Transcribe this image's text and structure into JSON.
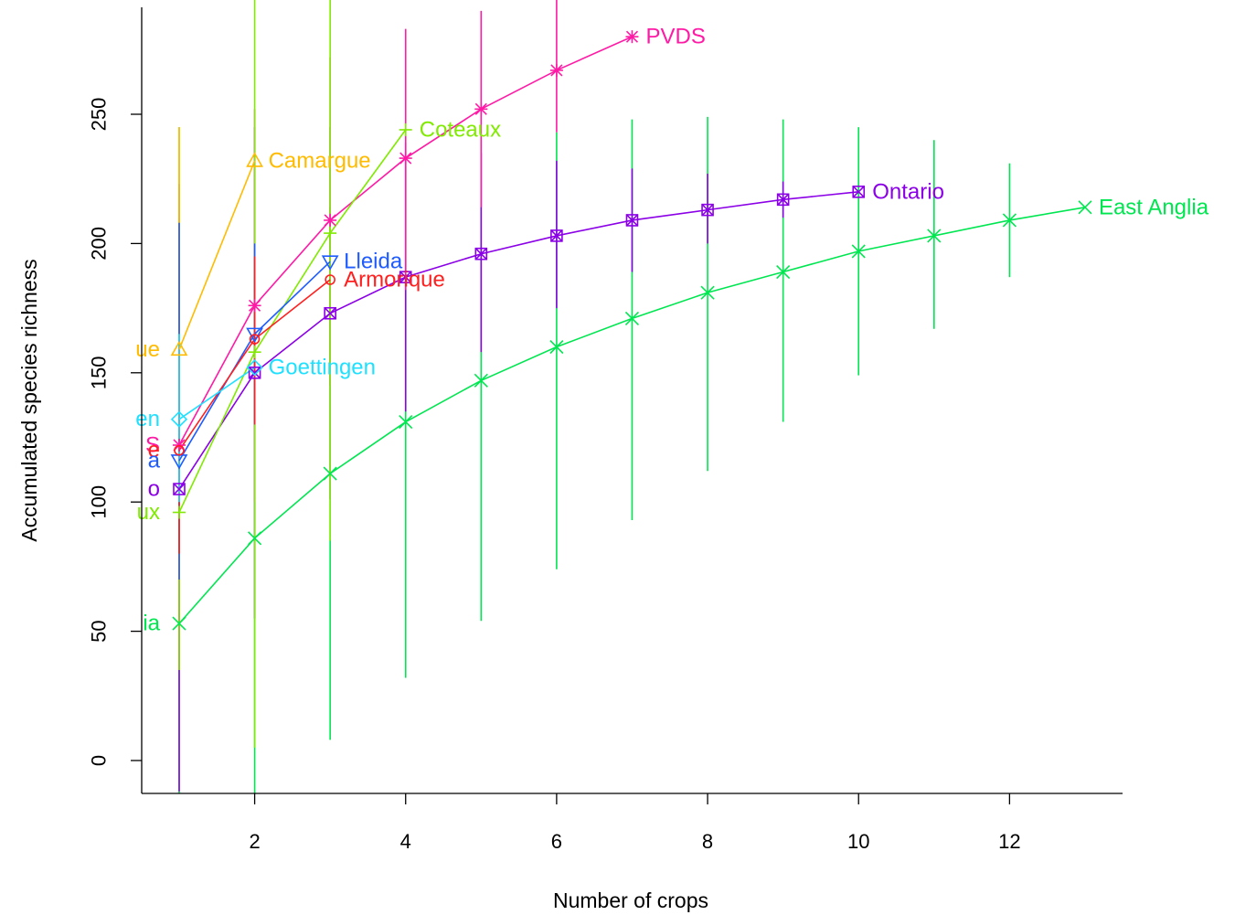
{
  "chart_data": {
    "type": "line",
    "title": "",
    "xlabel": "Number of crops",
    "ylabel": "Accumulated species richness",
    "xlim": [
      0.5,
      13.5
    ],
    "ylim": [
      -10,
      295
    ],
    "x_ticks": [
      2,
      4,
      6,
      8,
      10,
      12
    ],
    "y_ticks": [
      0,
      50,
      100,
      150,
      200,
      250
    ],
    "grid": false,
    "legend": "none (series labelled at line ends)",
    "series": [
      {
        "name": "East Anglia",
        "color": "#00e650",
        "marker": "x",
        "x": [
          1,
          2,
          3,
          4,
          5,
          6,
          7,
          8,
          9,
          10,
          11,
          12,
          13
        ],
        "y": [
          53,
          86,
          111,
          131,
          147,
          160,
          171,
          181,
          189,
          197,
          203,
          209,
          214
        ],
        "err_low": [
          -35,
          -15,
          8,
          32,
          54,
          74,
          93,
          112,
          131,
          149,
          167,
          187,
          214
        ],
        "err_high": [
          140,
          187,
          214,
          230,
          240,
          243,
          248,
          249,
          248,
          245,
          240,
          231,
          214
        ]
      },
      {
        "name": "Ontario",
        "color": "#8b00e6",
        "marker": "boxed-x",
        "x": [
          1,
          2,
          3,
          4,
          5,
          6,
          7,
          8,
          9,
          10
        ],
        "y": [
          105,
          150,
          173,
          187,
          196,
          203,
          209,
          213,
          217,
          220
        ],
        "err_low": [
          -12,
          55,
          101,
          135,
          158,
          175,
          189,
          200,
          210,
          220
        ],
        "err_high": [
          223,
          245,
          245,
          239,
          235,
          232,
          229,
          227,
          224,
          220
        ]
      },
      {
        "name": "PVDS",
        "color": "#ff1aa6",
        "marker": "asterisk",
        "x": [
          1,
          2,
          3,
          4,
          5,
          6,
          7
        ],
        "y": [
          122,
          176,
          209,
          233,
          252,
          267,
          280
        ],
        "err_low": [
          35,
          100,
          145,
          182,
          214,
          243,
          280
        ],
        "err_high": [
          210,
          252,
          272,
          283,
          290,
          295,
          280
        ]
      },
      {
        "name": "Coteaux",
        "color": "#80ea00",
        "marker": "plus",
        "x": [
          1,
          2,
          3,
          4
        ],
        "y": [
          96,
          158,
          204,
          244
        ],
        "err_low": [
          35,
          5,
          85,
          244
        ],
        "err_high": [
          245,
          295,
          295,
          244
        ]
      },
      {
        "name": "Camargue",
        "color": "#ffbb00",
        "marker": "triangle",
        "x": [
          1,
          2
        ],
        "y": [
          159,
          232
        ],
        "err_low": [
          70,
          232
        ],
        "err_high": [
          245,
          232
        ]
      },
      {
        "name": "Lleida",
        "color": "#1f5cff",
        "marker": "triangle-down",
        "x": [
          1,
          2,
          3
        ],
        "y": [
          116,
          165,
          193
        ],
        "err_low": [
          70,
          130,
          193
        ],
        "err_high": [
          208,
          200,
          193
        ]
      },
      {
        "name": "Armorique",
        "color": "#ff1f1f",
        "marker": "circle",
        "x": [
          1,
          2,
          3
        ],
        "y": [
          120,
          163,
          186
        ],
        "err_low": [
          80,
          130,
          186
        ],
        "err_high": [
          160,
          195,
          186
        ]
      },
      {
        "name": "Goettingen",
        "color": "#1fe0ff",
        "marker": "diamond",
        "x": [
          1,
          2
        ],
        "y": [
          132,
          152
        ],
        "err_low": [
          100,
          152
        ],
        "err_high": [
          165,
          152
        ]
      }
    ],
    "left_edge_label_fragments": [
      {
        "text": "ue",
        "color": "#ffbb00",
        "y": 159
      },
      {
        "text": "en",
        "color": "#1fe0ff",
        "y": 132
      },
      {
        "text": "S",
        "color": "#ff1aa6",
        "y": 122
      },
      {
        "text": "e",
        "color": "#ff1f1f",
        "y": 120
      },
      {
        "text": "a",
        "color": "#1f5cff",
        "y": 116
      },
      {
        "text": "o",
        "color": "#8b00e6",
        "y": 105
      },
      {
        "text": "ux",
        "color": "#80ea00",
        "y": 96
      },
      {
        "text": "ia",
        "color": "#00e650",
        "y": 53
      }
    ]
  }
}
